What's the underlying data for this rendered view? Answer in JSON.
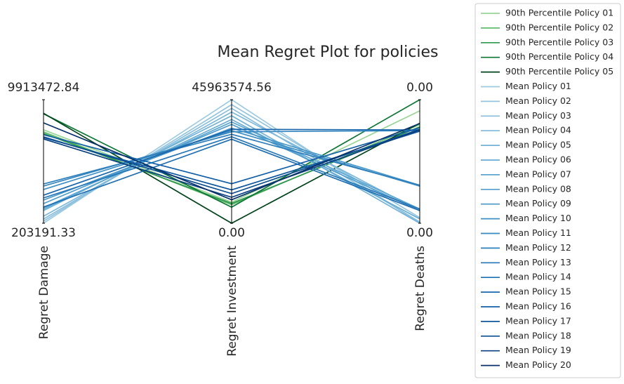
{
  "chart_data": {
    "type": "parallel",
    "title": "Mean Regret Plot for policies",
    "axes": [
      {
        "label": "Regret Damage",
        "lim": [
          203191.33,
          9913472.84
        ],
        "ticks": [
          203191.33,
          9913472.84
        ]
      },
      {
        "label": "Regret Investment",
        "lim": [
          0,
          45963574.56
        ],
        "ticks": [
          {
            "value": 0,
            "label": "0.00"
          },
          45963574.56
        ]
      },
      {
        "label": "Regret Deaths",
        "lim": [
          0,
          0.004
        ],
        "ticks": [
          {
            "value": 0,
            "label": "0.00"
          },
          {
            "value": 0.004,
            "label": "0.00"
          }
        ]
      }
    ],
    "series": [
      {
        "name": "90th Percentile Policy 01",
        "color": "#98d594",
        "values": [
          7544000,
          7814000,
          0.00364
        ]
      },
      {
        "name": "90th Percentile Policy 02",
        "color": "#5fba6d",
        "values": [
          7379000,
          6895000,
          0.0032
        ]
      },
      {
        "name": "90th Percentile Policy 03",
        "color": "#2f974e",
        "values": [
          7263000,
          7354000,
          0.00312
        ]
      },
      {
        "name": "90th Percentile Policy 04",
        "color": "#0e7735",
        "values": [
          8807000,
          5975000,
          0.004
        ]
      },
      {
        "name": "90th Percentile Policy 05",
        "color": "#00441b",
        "values": [
          8845000,
          0,
          0.00324
        ]
      },
      {
        "name": "Mean Policy 01",
        "color": "#9ecae1",
        "values": [
          203191.33,
          45963574.56,
          0
        ]
      },
      {
        "name": "Mean Policy 02",
        "color": "#93c4de",
        "values": [
          368000,
          44125000,
          0.00018
        ]
      },
      {
        "name": "Mean Policy 03",
        "color": "#88bedc",
        "values": [
          533000,
          42746000,
          4e-05
        ]
      },
      {
        "name": "Mean Policy 04",
        "color": "#7db8da",
        "values": [
          757000,
          41367000,
          0.0004
        ]
      },
      {
        "name": "Mean Policy 05",
        "color": "#72b2d7",
        "values": [
          1194000,
          39988000,
          0
        ]
      },
      {
        "name": "Mean Policy 06",
        "color": "#67acd4",
        "values": [
          1310000,
          38609000,
          0.00014
        ]
      },
      {
        "name": "Mean Policy 07",
        "color": "#5ca5d1",
        "values": [
          1417000,
          37690000,
          0.00046
        ]
      },
      {
        "name": "Mean Policy 08",
        "color": "#519ecd",
        "values": [
          1747000,
          36771000,
          0.00041
        ]
      },
      {
        "name": "Mean Policy 09",
        "color": "#4897c9",
        "values": [
          2024000,
          35392000,
          0.00123
        ]
      },
      {
        "name": "Mean Policy 10",
        "color": "#3f8fc5",
        "values": [
          2854000,
          34473000,
          0.0012
        ]
      },
      {
        "name": "Mean Policy 11",
        "color": "#3787c0",
        "values": [
          3126000,
          34013000,
          0.003
        ]
      },
      {
        "name": "Mean Policy 12",
        "color": "#2f7fbc",
        "values": [
          3291000,
          33094000,
          0.00123
        ]
      },
      {
        "name": "Mean Policy 13",
        "color": "#2777b7",
        "values": [
          2194000,
          32175000,
          0.00046
        ]
      },
      {
        "name": "Mean Policy 14",
        "color": "#1f6fb2",
        "values": [
          1475000,
          31255000,
          0.00041
        ]
      },
      {
        "name": "Mean Policy 15",
        "color": "#1967ad",
        "values": [
          2407000,
          34932000,
          0.00302
        ]
      },
      {
        "name": "Mean Policy 16",
        "color": "#135fa7",
        "values": [
          7156000,
          14708000,
          0.00309
        ]
      },
      {
        "name": "Mean Policy 17",
        "color": "#0e569d",
        "values": [
          6932000,
          12410000,
          0.00298
        ]
      },
      {
        "name": "Mean Policy 18",
        "color": "#0a4d90",
        "values": [
          6991000,
          11031000,
          0.00304
        ]
      },
      {
        "name": "Mean Policy 19",
        "color": "#083f7e",
        "values": [
          6826000,
          9652000,
          0.00302
        ]
      },
      {
        "name": "Mean Policy 20",
        "color": "#08306b",
        "values": [
          8093000,
          8733000,
          0.00323
        ]
      }
    ]
  }
}
